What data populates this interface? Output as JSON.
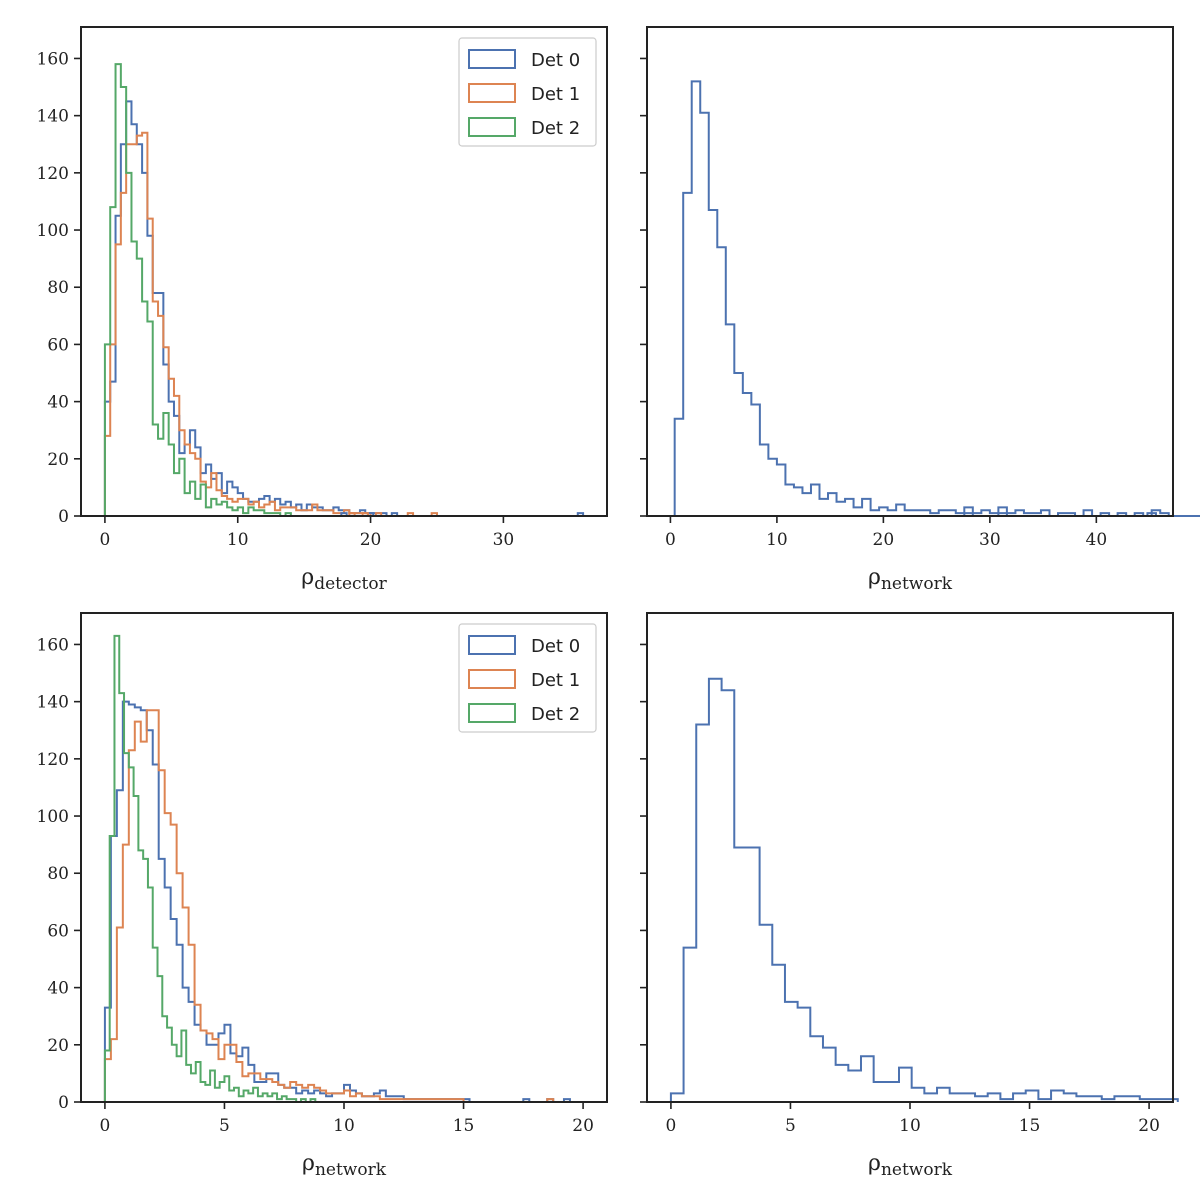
{
  "chart_data": [
    {
      "type": "histogram",
      "panel": "top-left",
      "xlabel": {
        "symbol": "ρ",
        "sub": "detector"
      },
      "xlim": [
        -1.8,
        37.8
      ],
      "ylim": [
        0,
        171
      ],
      "xticks": [
        0,
        10,
        20,
        30
      ],
      "yticks": [
        0,
        20,
        40,
        60,
        80,
        100,
        120,
        140,
        160
      ],
      "show_yticklabels": true,
      "legend": {
        "position": "top-right",
        "entries": [
          "Det 0",
          "Det 1",
          "Det 2"
        ]
      },
      "series": [
        {
          "name": "Det 0",
          "color": "#4c72b0",
          "start": 0,
          "binwidth": 0.4,
          "counts": [
            40,
            47,
            105,
            130,
            145,
            137,
            130,
            120,
            98,
            78,
            78,
            53,
            40,
            35,
            22,
            25,
            30,
            24,
            15,
            18,
            13,
            15,
            8,
            12,
            10,
            8,
            6,
            5,
            5,
            6,
            7,
            5,
            6,
            4,
            5,
            3,
            4,
            2,
            4,
            3,
            3,
            2,
            2,
            3,
            2,
            2,
            1,
            1,
            2,
            1,
            1,
            1,
            1,
            0,
            1,
            0,
            0,
            0,
            0,
            0,
            0,
            0,
            0,
            0,
            0,
            0,
            0,
            0,
            0,
            0,
            0,
            0,
            0,
            0,
            0,
            0,
            0,
            0,
            0,
            0,
            0,
            0,
            0,
            0,
            0,
            0,
            0,
            0,
            0,
            0,
            0,
            0
          ]
        },
        {
          "name": "Det 1",
          "color": "#dd8452",
          "start": 0,
          "binwidth": 0.4,
          "counts": [
            28,
            60,
            95,
            113,
            130,
            130,
            133,
            134,
            104,
            75,
            70,
            59,
            48,
            42,
            30,
            25,
            22,
            20,
            12,
            10,
            15,
            9,
            7,
            6,
            5,
            6,
            6,
            4,
            5,
            3,
            4,
            5,
            2,
            3,
            3,
            3,
            2,
            2,
            2,
            4,
            2,
            2,
            2,
            1,
            1,
            2,
            1,
            1,
            1,
            1,
            0,
            1,
            0,
            0,
            0,
            0,
            0,
            0,
            0,
            0,
            0,
            0,
            0,
            0,
            0,
            0,
            0,
            0,
            0,
            0,
            0,
            0,
            0,
            0,
            0,
            0,
            0,
            0,
            0,
            0,
            0,
            0,
            0,
            0,
            0,
            0,
            0,
            0,
            0,
            0,
            0
          ]
        },
        {
          "name": "Det 2",
          "color": "#55a868",
          "start": 0,
          "binwidth": 0.4,
          "counts": [
            60,
            108,
            158,
            150,
            120,
            96,
            90,
            75,
            68,
            32,
            27,
            36,
            25,
            15,
            20,
            8,
            12,
            6,
            11,
            3,
            6,
            4,
            5,
            3,
            2,
            3,
            1,
            3,
            2,
            2,
            1,
            1,
            1,
            0,
            1,
            0,
            0,
            0,
            0,
            0,
            0,
            0,
            0,
            0,
            0,
            0,
            0,
            0,
            0,
            0
          ]
        }
      ],
      "sparse_tail": [
        {
          "series": "Det 0",
          "x": [
            17.8,
            19.8,
            35.6
          ]
        },
        {
          "series": "Det 1",
          "x": [
            18.4,
            19.4,
            22.8,
            24.6
          ]
        }
      ]
    },
    {
      "type": "histogram",
      "panel": "top-right",
      "xlabel": {
        "symbol": "ρ",
        "sub": "network"
      },
      "xlim": [
        -2.2,
        47.2
      ],
      "ylim": [
        0,
        171
      ],
      "xticks": [
        0,
        10,
        20,
        30,
        40
      ],
      "yticks": [
        0,
        20,
        40,
        60,
        80,
        100,
        120,
        140,
        160
      ],
      "show_yticklabels": false,
      "series": [
        {
          "name": "",
          "color": "#4c72b0",
          "start": 0.4,
          "binwidth": 0.8,
          "counts": [
            34,
            113,
            152,
            141,
            107,
            94,
            67,
            50,
            43,
            39,
            25,
            20,
            18,
            11,
            10,
            8,
            11,
            6,
            8,
            5,
            6,
            3,
            6,
            2,
            3,
            2,
            4,
            2,
            2,
            2,
            1,
            2,
            2,
            1,
            3,
            1,
            2,
            1,
            3,
            1,
            2,
            1,
            1,
            2,
            0,
            1,
            1,
            0,
            2,
            0,
            1,
            0,
            1,
            0,
            1,
            0,
            2,
            1,
            0,
            0,
            0,
            0,
            0,
            0,
            0,
            0,
            0,
            0,
            0,
            0,
            0,
            0,
            0,
            0,
            0,
            0,
            0,
            0,
            0,
            0,
            0,
            0,
            0,
            0,
            0,
            0,
            0,
            0,
            0,
            0,
            0,
            0,
            0,
            0,
            0,
            0,
            0,
            0,
            0,
            0,
            0,
            0,
            0,
            0,
            0,
            0,
            0,
            0,
            0,
            0,
            0,
            0,
            0,
            0,
            0,
            0,
            0,
            0,
            0,
            0,
            0,
            0,
            0,
            0,
            0,
            0
          ]
        }
      ],
      "sparse_tail": [
        {
          "series": "",
          "x": [
            27.6,
            30.8,
            44.8
          ]
        }
      ]
    },
    {
      "type": "histogram",
      "panel": "bottom-left",
      "xlabel": {
        "symbol": "ρ",
        "sub": "network"
      },
      "xlim": [
        -1.0,
        21.0
      ],
      "ylim": [
        0,
        171
      ],
      "xticks": [
        0,
        5,
        10,
        15,
        20
      ],
      "yticks": [
        0,
        20,
        40,
        60,
        80,
        100,
        120,
        140,
        160
      ],
      "show_yticklabels": true,
      "legend": {
        "position": "top-right",
        "entries": [
          "Det 0",
          "Det 1",
          "Det 2"
        ]
      },
      "series": [
        {
          "name": "Det 0",
          "color": "#4c72b0",
          "start": 0,
          "binwidth": 0.25,
          "counts": [
            33,
            93,
            109,
            140,
            139,
            138,
            137,
            130,
            118,
            85,
            75,
            64,
            55,
            40,
            35,
            27,
            25,
            20,
            20,
            24,
            27,
            17,
            16,
            19,
            13,
            7,
            7,
            10,
            10,
            6,
            5,
            5,
            3,
            4,
            3,
            4,
            3,
            2,
            3,
            3,
            6,
            4,
            3,
            2,
            2,
            3,
            4,
            2,
            2,
            2,
            1,
            1,
            1,
            1,
            1,
            1,
            1,
            1,
            1,
            1,
            1,
            0,
            0,
            0,
            0,
            0,
            0,
            0,
            0,
            0,
            0,
            0,
            0,
            0,
            0,
            0,
            0,
            0,
            0
          ]
        },
        {
          "name": "Det 1",
          "color": "#dd8452",
          "start": 0,
          "binwidth": 0.25,
          "counts": [
            15,
            22,
            61,
            90,
            123,
            133,
            126,
            137,
            137,
            116,
            101,
            97,
            80,
            68,
            55,
            34,
            25,
            24,
            22,
            15,
            20,
            20,
            14,
            9,
            10,
            10,
            8,
            8,
            7,
            6,
            5,
            7,
            6,
            5,
            6,
            5,
            4,
            3,
            3,
            3,
            4,
            2,
            3,
            2,
            2,
            2,
            1,
            1,
            1,
            1,
            1,
            1,
            1,
            1,
            1,
            1,
            1,
            1,
            1,
            1,
            0,
            0,
            0,
            0,
            0,
            0,
            0,
            0,
            0,
            0,
            0,
            0,
            0,
            0,
            0,
            0,
            0,
            0,
            0
          ]
        },
        {
          "name": "Det 2",
          "color": "#55a868",
          "start": 0,
          "binwidth": 0.2,
          "counts": [
            18,
            93,
            163,
            143,
            122,
            117,
            107,
            88,
            85,
            75,
            54,
            44,
            30,
            26,
            20,
            16,
            25,
            13,
            10,
            14,
            7,
            6,
            11,
            5,
            7,
            9,
            4,
            5,
            2,
            4,
            3,
            5,
            2,
            3,
            2,
            3,
            1,
            2,
            1,
            1,
            0,
            1,
            0,
            1,
            0,
            0,
            0,
            0,
            0,
            0
          ]
        }
      ],
      "sparse_tail": [
        {
          "series": "Det 0",
          "x": [
            17.5,
            18.5,
            19.2
          ]
        },
        {
          "series": "Det 1",
          "x": [
            18.5
          ]
        }
      ]
    },
    {
      "type": "histogram",
      "panel": "bottom-right",
      "xlabel": {
        "symbol": "ρ",
        "sub": "network"
      },
      "xlim": [
        -1.0,
        21.0
      ],
      "ylim": [
        0,
        171
      ],
      "xticks": [
        0,
        5,
        10,
        15,
        20
      ],
      "yticks": [
        0,
        20,
        40,
        60,
        80,
        100,
        120,
        140,
        160
      ],
      "show_yticklabels": false,
      "series": [
        {
          "name": "",
          "color": "#4c72b0",
          "start": 0,
          "binwidth": 0.53,
          "counts": [
            3,
            54,
            132,
            148,
            144,
            89,
            89,
            62,
            48,
            35,
            33,
            23,
            19,
            13,
            11,
            16,
            7,
            7,
            12,
            5,
            3,
            5,
            3,
            3,
            2,
            3,
            1,
            3,
            4,
            1,
            4,
            3,
            2,
            2,
            1,
            2,
            2,
            1,
            1,
            1
          ]
        }
      ]
    }
  ]
}
